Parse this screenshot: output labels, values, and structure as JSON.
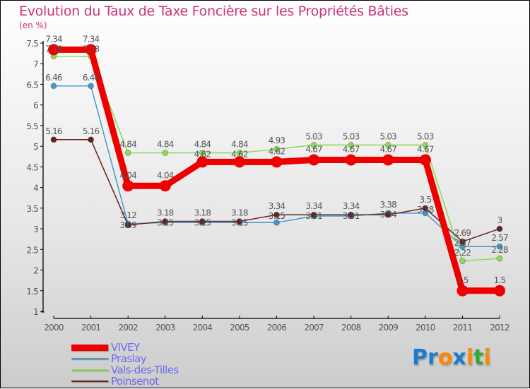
{
  "title": "Evolution du Taux de Taxe Foncière sur les Propriétés Bâties",
  "subtitle": "(en %)",
  "logo": {
    "text": "Proxiti",
    "letters": [
      [
        "P",
        "#1a7bd0"
      ],
      [
        "r",
        "#1a7bd0"
      ],
      [
        "o",
        "#ff8800"
      ],
      [
        "x",
        "#1a7bd0"
      ],
      [
        "i",
        "#ff8800"
      ],
      [
        "t",
        "#33aa33"
      ],
      [
        "i",
        "#ff8800"
      ]
    ]
  },
  "chart_data": {
    "type": "line",
    "title": "Evolution du Taux de Taxe Foncière sur les Propriétés Bâties",
    "ylabel": "(en %)",
    "xlabel": "",
    "x": [
      "2000",
      "2001",
      "2002",
      "2003",
      "2004",
      "2005",
      "2006",
      "2007",
      "2008",
      "2009",
      "2010",
      "2011",
      "2012"
    ],
    "ylim": [
      1,
      7.5
    ],
    "yticks": [
      "1",
      "1.5",
      "2",
      "2.5",
      "3",
      "3.5",
      "4",
      "4.5",
      "5",
      "5.5",
      "6",
      "6.5",
      "7",
      "7.5"
    ],
    "legend_position": "bottom-left",
    "series": [
      {
        "name": "VIVEY",
        "color": "#ee0000",
        "values": [
          7.34,
          7.34,
          4.04,
          4.04,
          4.62,
          4.62,
          4.62,
          4.67,
          4.67,
          4.67,
          4.67,
          1.5,
          1.5
        ]
      },
      {
        "name": "Praslay",
        "color": "#4499cc",
        "values": [
          6.46,
          6.46,
          3.12,
          3.15,
          3.15,
          3.15,
          3.15,
          3.31,
          3.31,
          3.38,
          3.38,
          2.57,
          2.57
        ]
      },
      {
        "name": "Vals-des-Tilles",
        "color": "#88dd55",
        "values": [
          7.18,
          7.18,
          4.84,
          4.84,
          4.84,
          4.84,
          4.93,
          5.03,
          5.03,
          5.03,
          5.03,
          2.22,
          2.28
        ]
      },
      {
        "name": "Poinsenot",
        "color": "#662222",
        "values": [
          5.16,
          5.16,
          3.09,
          3.18,
          3.18,
          3.18,
          3.34,
          3.34,
          3.34,
          3.34,
          3.5,
          2.69,
          3.0
        ]
      }
    ]
  }
}
